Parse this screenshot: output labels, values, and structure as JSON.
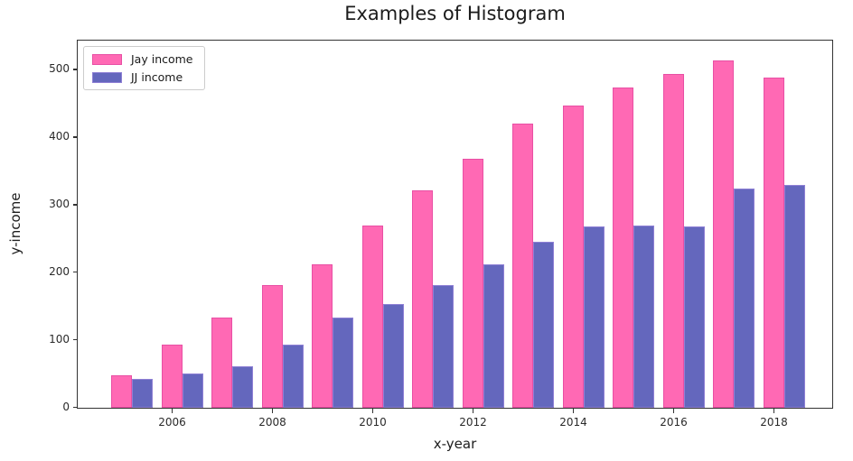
{
  "chart_data": {
    "type": "bar",
    "title": "Examples of Histogram",
    "xlabel": "x-year",
    "ylabel": "y-income",
    "categories": [
      2005,
      2006,
      2007,
      2008,
      2009,
      2010,
      2011,
      2012,
      2013,
      2014,
      2015,
      2016,
      2017,
      2018
    ],
    "x_tick_labels": [
      "2006",
      "2008",
      "2010",
      "2012",
      "2014",
      "2016",
      "2018"
    ],
    "y_ticks": [
      0,
      100,
      200,
      300,
      400,
      500
    ],
    "ylim": [
      0,
      542
    ],
    "grid": false,
    "legend_position": "upper left",
    "bar_width_fraction": 0.4,
    "series": [
      {
        "name": "Jay income",
        "color": "#ff69b4",
        "edge_color": "#e84fa4",
        "values": [
          48,
          93,
          133,
          182,
          212,
          270,
          322,
          369,
          420,
          447,
          474,
          494,
          514,
          488
        ]
      },
      {
        "name": "JJ income",
        "color": "#6467bd",
        "edge_color": "#8f80d5",
        "values": [
          43,
          51,
          61,
          93,
          133,
          154,
          182,
          212,
          246,
          268,
          270,
          269,
          325,
          330
        ]
      }
    ]
  },
  "colors": {
    "background": "#ffffff",
    "spine": "#333333",
    "title_text": "#1b1b1b",
    "tick_text": "#2a2a2a",
    "legend_border": "#cccccc"
  }
}
